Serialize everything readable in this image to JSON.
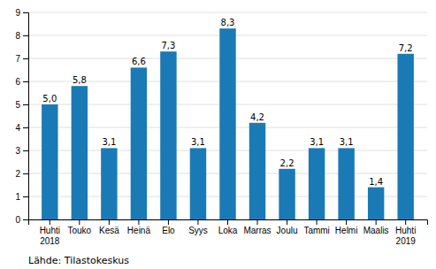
{
  "chart_data": {
    "type": "bar",
    "categories": [
      "Huhti\n2018",
      "Touko",
      "Kesä",
      "Heinä",
      "Elo",
      "Syys",
      "Loka",
      "Marras",
      "Joulu",
      "Tammi",
      "Helmi",
      "Maalis",
      "Huhti\n2019"
    ],
    "values": [
      5.0,
      5.8,
      3.1,
      6.6,
      7.3,
      3.1,
      8.3,
      4.2,
      2.2,
      3.1,
      3.1,
      1.4,
      7.2
    ],
    "value_labels": [
      "5,0",
      "5,8",
      "3,1",
      "6,6",
      "7,3",
      "3,1",
      "8,3",
      "4,2",
      "2,2",
      "3,1",
      "3,1",
      "1,4",
      "7,2"
    ],
    "data_labels": true,
    "color": "#1a7ab5",
    "ylim": [
      0,
      9
    ],
    "yticks": [
      0,
      1,
      2,
      3,
      4,
      5,
      6,
      7,
      8,
      9
    ],
    "grid": true,
    "annotations": [
      "Lähde: Tilastokeskus"
    ]
  }
}
